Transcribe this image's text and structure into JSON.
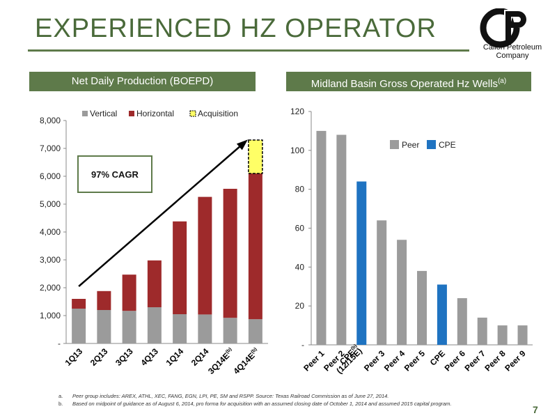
{
  "header": {
    "title": "EXPERIENCED HZ OPERATOR"
  },
  "logo": {
    "name_line1": "Callon Petroleum",
    "name_line2": "Company",
    "monogram": "CP"
  },
  "left_section": {
    "label": "Net Daily Production (BOEPD)"
  },
  "right_section": {
    "label": "Midland Basin Gross Operated Hz Wells",
    "label_sup": "(a)"
  },
  "colors": {
    "vertical": "#9b9b9b",
    "horizontal": "#9e2a2b",
    "acquisition": "#ffff66",
    "peer": "#9b9b9b",
    "cpe": "#1f73c1",
    "accent": "#5e7a4a"
  },
  "chart_data": [
    {
      "type": "bar",
      "stacked": true,
      "title": "Net Daily Production (BOEPD)",
      "categories": [
        "1Q13",
        "2Q13",
        "3Q13",
        "4Q13",
        "1Q14",
        "2Q14",
        "3Q14E",
        "4Q14E"
      ],
      "category_sup": [
        "",
        "",
        "",
        "",
        "",
        "",
        "(b)",
        "(b)"
      ],
      "series": [
        {
          "name": "Vertical",
          "values": [
            1250,
            1200,
            1170,
            1300,
            1050,
            1040,
            920,
            870
          ]
        },
        {
          "name": "Horizontal",
          "values": [
            350,
            680,
            1300,
            1680,
            3330,
            4220,
            4630,
            5230
          ]
        },
        {
          "name": "Acquisition",
          "values": [
            0,
            0,
            0,
            0,
            0,
            0,
            0,
            1200
          ]
        }
      ],
      "ylim": [
        0,
        8000
      ],
      "yticks": [
        0,
        1000,
        2000,
        3000,
        4000,
        5000,
        6000,
        7000,
        8000
      ],
      "ytick_labels": [
        "-",
        "1,000",
        "2,000",
        "3,000",
        "4,000",
        "5,000",
        "6,000",
        "7,000",
        "8,000"
      ],
      "annotation": "97% CAGR",
      "legend_position": "top",
      "grid": false
    },
    {
      "type": "bar",
      "title": "Midland Basin Gross Operated Hz Wells",
      "categories": [
        "Peer 1",
        "Peer 2",
        "CPE (12/15E)",
        "Peer 3",
        "Peer 4",
        "Peer 5",
        "CPE",
        "Peer 6",
        "Peer 7",
        "Peer 8",
        "Peer 9"
      ],
      "category_lines": [
        [
          "Peer 1"
        ],
        [
          "Peer 2"
        ],
        [
          "CPE",
          "(12/15E)"
        ],
        [
          "Peer 3"
        ],
        [
          "Peer 4"
        ],
        [
          "Peer 5"
        ],
        [
          "CPE"
        ],
        [
          "Peer 6"
        ],
        [
          "Peer 7"
        ],
        [
          "Peer 8"
        ],
        [
          "Peer 9"
        ]
      ],
      "category_sup": [
        "",
        "",
        "(b)",
        "",
        "",
        "",
        "",
        "",
        "",
        "",
        ""
      ],
      "values": [
        110,
        108,
        84,
        64,
        54,
        38,
        31,
        24,
        14,
        10,
        10
      ],
      "groups": [
        "Peer",
        "Peer",
        "CPE",
        "Peer",
        "Peer",
        "Peer",
        "CPE",
        "Peer",
        "Peer",
        "Peer",
        "Peer"
      ],
      "legend": [
        "Peer",
        "CPE"
      ],
      "ylim": [
        0,
        120
      ],
      "yticks": [
        0,
        20,
        40,
        60,
        80,
        100,
        120
      ],
      "ytick_labels": [
        "-",
        "20",
        "40",
        "60",
        "80",
        "100",
        "120"
      ],
      "legend_position": "top-right",
      "grid": false
    }
  ],
  "footnotes": [
    {
      "marker": "a.",
      "text": "Peer group includes: AREX, ATHL, XEC, FANG, EGN, LPI, PE, SM and RSPP. Source: Texas Railroad Commission as of June 27, 2014."
    },
    {
      "marker": "b.",
      "text": "Based on midpoint of guidance as of August 6, 2014, pro forma for acquisition with an assumed closing date of October 1, 2014 and assumed 2015 capital program."
    }
  ],
  "page_number": "7"
}
